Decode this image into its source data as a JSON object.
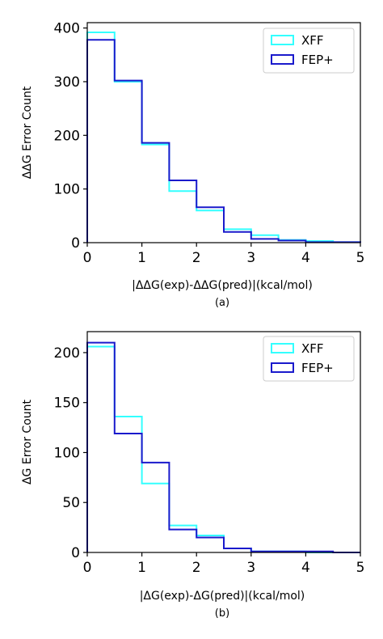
{
  "colors": {
    "xff": "#33ffff",
    "fep": "#1a1acc",
    "axis": "#000000",
    "legend_border": "#cccccc"
  },
  "legend_labels": {
    "xff": "XFF",
    "fep": "FEP+"
  },
  "chart_data": [
    {
      "type": "histogram",
      "caption": "(a)",
      "xlabel": "|ΔΔG(exp)-ΔΔG(pred)|(kcal/mol)",
      "ylabel": "ΔΔG Error Count",
      "xlim": [
        0,
        5
      ],
      "ylim": [
        0,
        410
      ],
      "x_ticks": [
        0,
        1,
        2,
        3,
        4,
        5
      ],
      "y_ticks": [
        0,
        100,
        200,
        300,
        400
      ],
      "bin_edges": [
        0,
        0.5,
        1.0,
        1.5,
        2.0,
        2.5,
        3.0,
        3.5,
        4.0,
        4.5,
        5.0
      ],
      "legend_position": "top-right",
      "grid": false,
      "series": [
        {
          "name": "XFF",
          "color_key": "xff",
          "values": [
            392,
            300,
            183,
            96,
            60,
            25,
            14,
            5,
            3,
            1
          ]
        },
        {
          "name": "FEP+",
          "color_key": "fep",
          "values": [
            378,
            302,
            186,
            116,
            66,
            20,
            7,
            4,
            1,
            1
          ]
        }
      ]
    },
    {
      "type": "histogram",
      "caption": "(b)",
      "xlabel": "|ΔG(exp)-ΔG(pred)|(kcal/mol)",
      "ylabel": "ΔG Error Count",
      "xlim": [
        0,
        5
      ],
      "ylim": [
        0,
        221
      ],
      "x_ticks": [
        0,
        1,
        2,
        3,
        4,
        5
      ],
      "y_ticks": [
        0,
        50,
        100,
        150,
        200
      ],
      "bin_edges": [
        0,
        0.5,
        1.0,
        1.5,
        2.0,
        2.5,
        3.0,
        3.5,
        4.0,
        4.5,
        5.0
      ],
      "legend_position": "top-right",
      "grid": false,
      "series": [
        {
          "name": "XFF",
          "color_key": "xff",
          "values": [
            206,
            136,
            69,
            27,
            17,
            4,
            1,
            1,
            0,
            0
          ]
        },
        {
          "name": "FEP+",
          "color_key": "fep",
          "values": [
            210,
            119,
            90,
            23,
            15,
            4,
            1,
            1,
            1,
            0
          ]
        }
      ]
    }
  ]
}
